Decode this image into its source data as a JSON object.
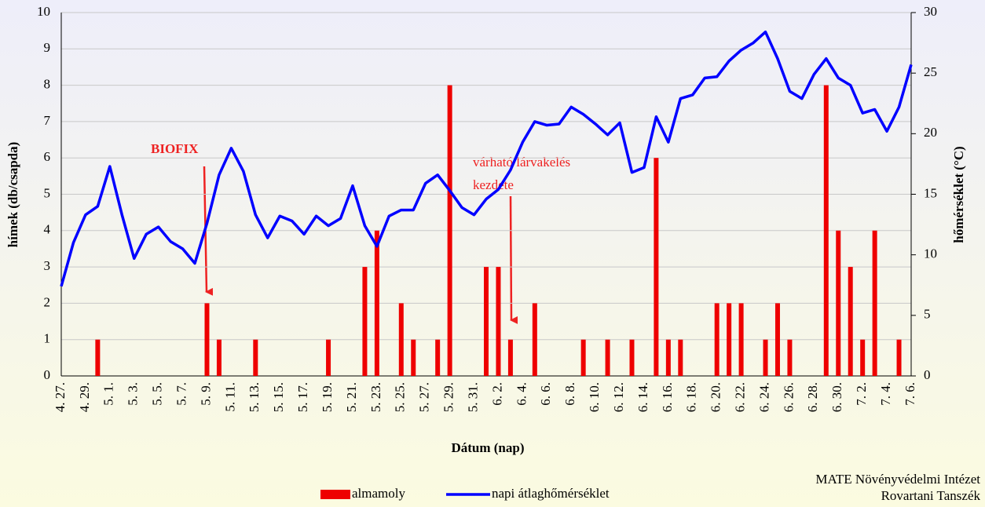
{
  "chart_data": {
    "type": "bar_line",
    "x_label": "Dátum (nap)",
    "y_label": "hímek (db/csapda)",
    "y2_label": "hőmérséklet (°C)",
    "categories": [
      "4. 27.",
      null,
      "4. 29.",
      null,
      "5. 1.",
      null,
      "5. 3.",
      null,
      "5. 5.",
      null,
      "5. 7.",
      null,
      "5. 9.",
      null,
      "5. 11.",
      null,
      "5. 13.",
      null,
      "5. 15.",
      null,
      "5. 17.",
      null,
      "5. 19.",
      null,
      "5. 21.",
      null,
      "5. 23.",
      null,
      "5. 25.",
      null,
      "5. 27.",
      null,
      "5. 29.",
      null,
      "5. 31.",
      null,
      "6. 2.",
      null,
      "6. 4.",
      null,
      "6. 6.",
      null,
      "6. 8.",
      null,
      "6. 10.",
      null,
      "6. 12.",
      null,
      "6. 14.",
      null,
      "6. 16.",
      null,
      "6. 18.",
      null,
      "6. 20.",
      null,
      "6. 22.",
      null,
      "6. 24.",
      null,
      "6. 26.",
      null,
      "6. 28.",
      null,
      "6. 30.",
      null,
      "7. 2.",
      null,
      "7. 4.",
      null,
      "7. 6."
    ],
    "series": [
      {
        "name": "almamoly",
        "color": "#ee0000",
        "kind": "bar",
        "values": [
          0,
          0,
          0,
          1,
          0,
          0,
          0,
          0,
          0,
          0,
          0,
          0,
          2,
          1,
          0,
          0,
          1,
          0,
          0,
          0,
          0,
          0,
          1,
          0,
          0,
          3,
          4,
          0,
          2,
          1,
          0,
          1,
          8,
          0,
          0,
          3,
          3,
          1,
          0,
          2,
          0,
          0,
          0,
          1,
          0,
          1,
          0,
          1,
          0,
          6,
          1,
          1,
          0,
          0,
          2,
          2,
          2,
          0,
          1,
          2,
          1,
          0,
          0,
          8,
          4,
          3,
          1,
          4,
          0,
          1,
          0
        ]
      },
      {
        "name": "napi átlaghőmérséklet",
        "color": "#0000ff",
        "kind": "line",
        "axis": "y2",
        "values": [
          7.4,
          11,
          13.3,
          14,
          17.3,
          13.3,
          9.7,
          11.7,
          12.3,
          11.1,
          10.5,
          9.3,
          12.6,
          16.6,
          18.8,
          16.9,
          13.3,
          11.4,
          13.2,
          12.8,
          11.7,
          13.2,
          12.4,
          13,
          15.7,
          12.4,
          10.7,
          13.2,
          13.7,
          13.7,
          15.9,
          16.6,
          15.3,
          13.9,
          13.3,
          14.6,
          15.4,
          17,
          19.3,
          21,
          20.7,
          20.8,
          22.2,
          21.6,
          20.8,
          19.9,
          20.9,
          16.8,
          17.2,
          21.4,
          19.3,
          22.9,
          23.2,
          24.6,
          24.7,
          26,
          26.9,
          27.5,
          28.4,
          26.2,
          23.5,
          22.9,
          24.9,
          26.2,
          24.6,
          24,
          21.7,
          22,
          20.2,
          22.2,
          25.7
        ]
      }
    ],
    "ylim": [
      0,
      10
    ],
    "yticks": [
      0,
      1,
      2,
      3,
      4,
      5,
      6,
      7,
      8,
      9,
      10
    ],
    "y2lim": [
      0,
      30
    ],
    "y2ticks": [
      0,
      5,
      10,
      15,
      20,
      25,
      30
    ],
    "grid": true,
    "annotations": [
      {
        "text": "BIOFIX"
      },
      {
        "text": [
          "várható lárvakelés",
          "kezdete"
        ]
      }
    ],
    "source": [
      "MATE Növényvédelmi Intézet",
      "Rovartani Tanszék"
    ]
  }
}
